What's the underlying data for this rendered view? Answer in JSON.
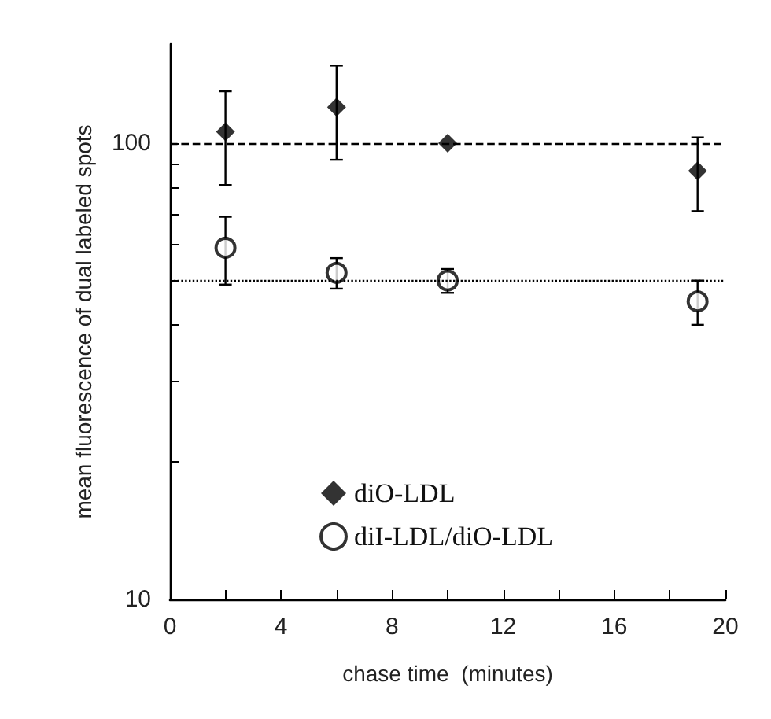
{
  "chart_data": {
    "type": "scatter",
    "xlabel": "chase time  (minutes)",
    "ylabel": "mean fluorescence of dual labeled spots",
    "log": "y",
    "xlim": [
      0,
      20
    ],
    "xticks": [
      0,
      {
        "value": 2,
        "label": null
      },
      4,
      {
        "value": 6,
        "label": null
      },
      8,
      {
        "value": 10,
        "label": null
      },
      12,
      {
        "value": 14,
        "label": null
      },
      16,
      {
        "value": 18,
        "label": null
      },
      20
    ],
    "ylim": [
      10,
      165
    ],
    "yticks": [
      10,
      {
        "value": 20,
        "label": null
      },
      {
        "value": 30,
        "label": null
      },
      {
        "value": 40,
        "label": null
      },
      {
        "value": 50,
        "label": null
      },
      {
        "value": 60,
        "label": null
      },
      {
        "value": 70,
        "label": null
      },
      {
        "value": 80,
        "label": null
      },
      {
        "value": 90,
        "label": null
      },
      100
    ],
    "grid": false,
    "legend": "bottom",
    "series": [
      {
        "name": "diO-LDL",
        "color": "#000000",
        "marker": "diamond",
        "x": [
          2,
          6,
          10,
          19
        ],
        "values": [
          106,
          120,
          100,
          87
        ],
        "errors": [
          [
            81,
            130
          ],
          [
            92,
            148
          ],
          null,
          [
            71,
            103
          ]
        ]
      },
      {
        "name": "diI-LDL/diO-LDL",
        "color": "#000000",
        "marker": "circle",
        "x": [
          2,
          6,
          10,
          19
        ],
        "values": [
          59,
          52,
          50,
          45
        ],
        "errors": [
          [
            49,
            69
          ],
          [
            48,
            56
          ],
          [
            47,
            53
          ],
          [
            40,
            50
          ]
        ]
      }
    ],
    "ref_lines": [
      {
        "axis": "y",
        "value": 100,
        "line_style": "dashed"
      },
      {
        "axis": "y",
        "value": 50,
        "line_style": "dotted"
      }
    ]
  }
}
